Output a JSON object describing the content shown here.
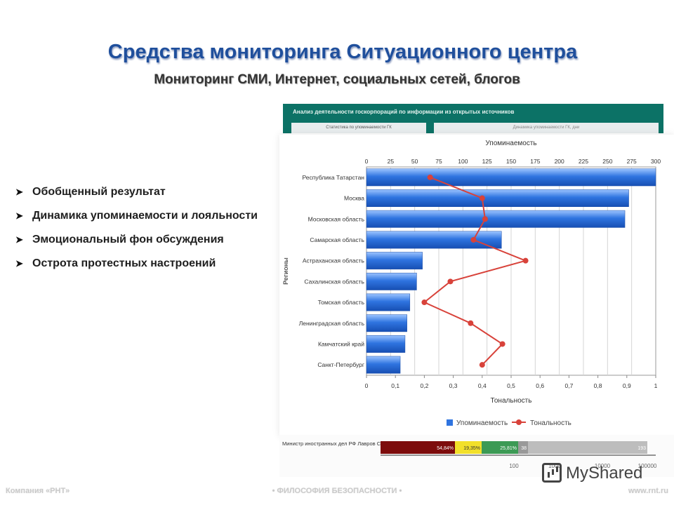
{
  "slide": {
    "title": "Средства мониторинга Ситуационного центра",
    "subtitle": "Мониторинг СМИ, Интернет, социальных сетей, блогов",
    "bullets": [
      "Обобщенный результат",
      "Динамика упоминаемости и лояльности",
      "Эмоциональный фон обсуждения",
      "Острота протестных настроений"
    ],
    "arrow_glyph": "➤"
  },
  "panel": {
    "title": "Анализ деятельности госкорпораций по информации из открытых источников",
    "tab1": "Статистика по упоминаемости ГК",
    "tab2": "Динамика упоминаемости ГК, дни"
  },
  "minister": {
    "label": "Министр иностранных дел РФ Лавров С.В.",
    "segments": [
      {
        "text": "54,84%",
        "value": 54.84,
        "color": "#7d0c0c"
      },
      {
        "text": "19,35%",
        "value": 19.35,
        "color": "#f2e02a"
      },
      {
        "text": "25,81%",
        "value": 25.81,
        "color": "#3c9a55"
      },
      {
        "text": "38",
        "value": 38,
        "color": "#999999"
      },
      {
        "text": "193",
        "value": 193,
        "color": "#bdbdbd"
      }
    ],
    "axis_ticks": [
      "100",
      "1000",
      "10000",
      "100000"
    ]
  },
  "footer": {
    "left": "Компания «РНТ»",
    "center": "• ФИЛОСОФИЯ БЕЗОПАСНОСТИ •",
    "right": "www.rnt.ru",
    "watermark": "MyShared"
  },
  "colors": {
    "title": "#1f4f9c",
    "bar": "#2f74e0",
    "line": "#d8423a",
    "panel": "#0c7266"
  },
  "chart_data": {
    "type": "bar",
    "orientation": "horizontal",
    "categories": [
      "Республика Татарстан",
      "Москва",
      "Московская область",
      "Самарская область",
      "Астраханская область",
      "Сахалинская область",
      "Томская область",
      "Ленинградская область",
      "Камчатский край",
      "Санкт-Петербург"
    ],
    "series": [
      {
        "name": "Упоминаемость",
        "type": "bar",
        "axis": "top",
        "values": [
          300,
          272,
          268,
          140,
          58,
          52,
          45,
          42,
          40,
          35
        ]
      },
      {
        "name": "Тональность",
        "type": "line",
        "axis": "bottom",
        "values": [
          0.22,
          0.4,
          0.41,
          0.37,
          0.55,
          0.29,
          0.2,
          0.36,
          0.47,
          0.4
        ]
      }
    ],
    "top_axis": {
      "label": "Упоминаемость",
      "range": [
        0,
        300
      ],
      "ticks": [
        "0",
        "25",
        "50",
        "75",
        "100",
        "125",
        "150",
        "175",
        "200",
        "225",
        "250",
        "275",
        "300"
      ]
    },
    "bottom_axis": {
      "label": "Тональность",
      "range": [
        0,
        1
      ],
      "ticks": [
        "0",
        "0,1",
        "0,2",
        "0,3",
        "0,4",
        "0,5",
        "0,6",
        "0,7",
        "0,8",
        "0,9",
        "1"
      ]
    },
    "ylabel": "Регионы",
    "grid": true,
    "legend_position": "bottom"
  }
}
